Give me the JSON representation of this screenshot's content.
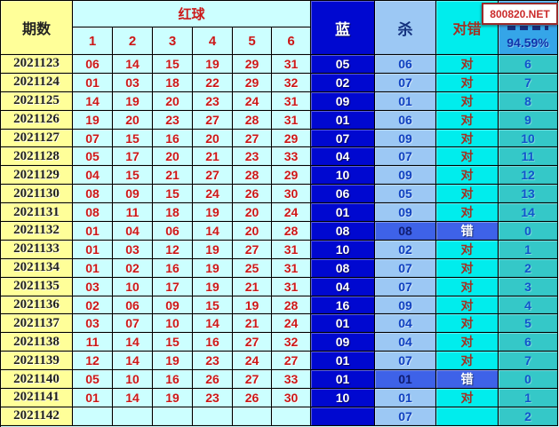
{
  "header": {
    "period_label": "期数",
    "red_label": "红球",
    "red_cols": [
      "1",
      "2",
      "3",
      "4",
      "5",
      "6"
    ],
    "blue_label": "蓝",
    "kill_label": "杀",
    "judge_label": "对错",
    "rate_value": "94.59%",
    "watermark": "800820.NET"
  },
  "colors": {
    "period_bg": "#FFFF99",
    "red_area_bg": "#CCFFFF",
    "blue_col_bg": "#0008D0",
    "kill_col_bg": "#9CC8F4",
    "judge_col_bg": "#00EDED",
    "count_col_bg": "#35C8C8",
    "rate_cell_bg": "#35A5E8",
    "wrong_highlight_bg": "#3E62E8",
    "red_text": "#CC1818",
    "blue_text": "#1040C0"
  },
  "chart_data": {
    "type": "table",
    "columns": [
      "期数",
      "1",
      "2",
      "3",
      "4",
      "5",
      "6",
      "蓝",
      "杀",
      "对错",
      "94.59%"
    ],
    "rows": [
      {
        "period": "2021123",
        "reds": [
          "06",
          "14",
          "15",
          "19",
          "29",
          "31"
        ],
        "blue": "05",
        "kill": "06",
        "judge": "对",
        "count": "6",
        "wrong": false
      },
      {
        "period": "2021124",
        "reds": [
          "01",
          "03",
          "18",
          "22",
          "29",
          "32"
        ],
        "blue": "02",
        "kill": "07",
        "judge": "对",
        "count": "7",
        "wrong": false
      },
      {
        "period": "2021125",
        "reds": [
          "14",
          "19",
          "20",
          "23",
          "24",
          "31"
        ],
        "blue": "09",
        "kill": "01",
        "judge": "对",
        "count": "8",
        "wrong": false
      },
      {
        "period": "2021126",
        "reds": [
          "19",
          "20",
          "23",
          "27",
          "28",
          "31"
        ],
        "blue": "01",
        "kill": "06",
        "judge": "对",
        "count": "9",
        "wrong": false
      },
      {
        "period": "2021127",
        "reds": [
          "07",
          "15",
          "16",
          "20",
          "27",
          "29"
        ],
        "blue": "07",
        "kill": "09",
        "judge": "对",
        "count": "10",
        "wrong": false
      },
      {
        "period": "2021128",
        "reds": [
          "05",
          "17",
          "20",
          "21",
          "23",
          "33"
        ],
        "blue": "04",
        "kill": "07",
        "judge": "对",
        "count": "11",
        "wrong": false
      },
      {
        "period": "2021129",
        "reds": [
          "04",
          "15",
          "21",
          "27",
          "28",
          "29"
        ],
        "blue": "10",
        "kill": "09",
        "judge": "对",
        "count": "12",
        "wrong": false
      },
      {
        "period": "2021130",
        "reds": [
          "08",
          "09",
          "15",
          "24",
          "26",
          "30"
        ],
        "blue": "06",
        "kill": "05",
        "judge": "对",
        "count": "13",
        "wrong": false
      },
      {
        "period": "2021131",
        "reds": [
          "08",
          "11",
          "18",
          "19",
          "20",
          "24"
        ],
        "blue": "01",
        "kill": "09",
        "judge": "对",
        "count": "14",
        "wrong": false
      },
      {
        "period": "2021132",
        "reds": [
          "01",
          "04",
          "06",
          "14",
          "20",
          "28"
        ],
        "blue": "08",
        "kill": "08",
        "judge": "错",
        "count": "0",
        "wrong": true
      },
      {
        "period": "2021133",
        "reds": [
          "01",
          "03",
          "12",
          "19",
          "27",
          "31"
        ],
        "blue": "10",
        "kill": "02",
        "judge": "对",
        "count": "1",
        "wrong": false
      },
      {
        "period": "2021134",
        "reds": [
          "01",
          "02",
          "16",
          "19",
          "25",
          "31"
        ],
        "blue": "08",
        "kill": "07",
        "judge": "对",
        "count": "2",
        "wrong": false
      },
      {
        "period": "2021135",
        "reds": [
          "03",
          "10",
          "17",
          "19",
          "21",
          "31"
        ],
        "blue": "04",
        "kill": "07",
        "judge": "对",
        "count": "3",
        "wrong": false
      },
      {
        "period": "2021136",
        "reds": [
          "02",
          "06",
          "09",
          "15",
          "19",
          "28"
        ],
        "blue": "16",
        "kill": "09",
        "judge": "对",
        "count": "4",
        "wrong": false
      },
      {
        "period": "2021137",
        "reds": [
          "03",
          "07",
          "10",
          "14",
          "21",
          "24"
        ],
        "blue": "01",
        "kill": "04",
        "judge": "对",
        "count": "5",
        "wrong": false
      },
      {
        "period": "2021138",
        "reds": [
          "11",
          "14",
          "15",
          "16",
          "27",
          "32"
        ],
        "blue": "09",
        "kill": "04",
        "judge": "对",
        "count": "6",
        "wrong": false
      },
      {
        "period": "2021139",
        "reds": [
          "12",
          "14",
          "19",
          "23",
          "24",
          "27"
        ],
        "blue": "01",
        "kill": "07",
        "judge": "对",
        "count": "7",
        "wrong": false
      },
      {
        "period": "2021140",
        "reds": [
          "05",
          "10",
          "16",
          "26",
          "27",
          "33"
        ],
        "blue": "01",
        "kill": "01",
        "judge": "错",
        "count": "0",
        "wrong": true
      },
      {
        "period": "2021141",
        "reds": [
          "01",
          "14",
          "19",
          "23",
          "26",
          "30"
        ],
        "blue": "10",
        "kill": "01",
        "judge": "对",
        "count": "1",
        "wrong": false
      },
      {
        "period": "2021142",
        "reds": [
          "",
          "",
          "",
          "",
          "",
          ""
        ],
        "blue": "",
        "kill": "07",
        "judge": "",
        "count": "2",
        "wrong": false
      }
    ]
  }
}
